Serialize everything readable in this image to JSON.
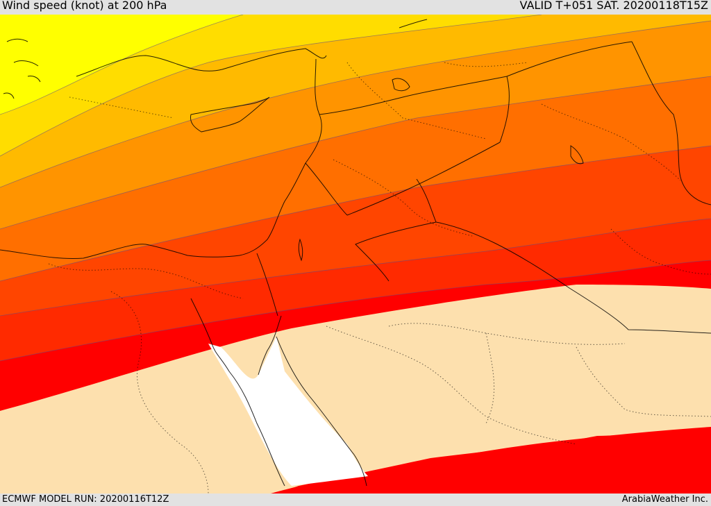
{
  "header": {
    "title": "Wind speed (knot) at 200 hPa",
    "valid": "VALID T+051 SAT. 20200118T15Z"
  },
  "footer": {
    "model_run": "ECMWF MODEL RUN: 20200116T12Z",
    "credit": "ArabiaWeather Inc."
  },
  "colors": {
    "band_1": "#ffff00",
    "band_2": "#ffdd00",
    "band_3": "#ffba00",
    "band_4": "#ff9400",
    "band_5": "#ff6f00",
    "band_6": "#ff4500",
    "band_7": "#ff2a00",
    "band_8": "#ff0000",
    "low_wind": "#fde0ae",
    "sea": "#ffffff"
  }
}
